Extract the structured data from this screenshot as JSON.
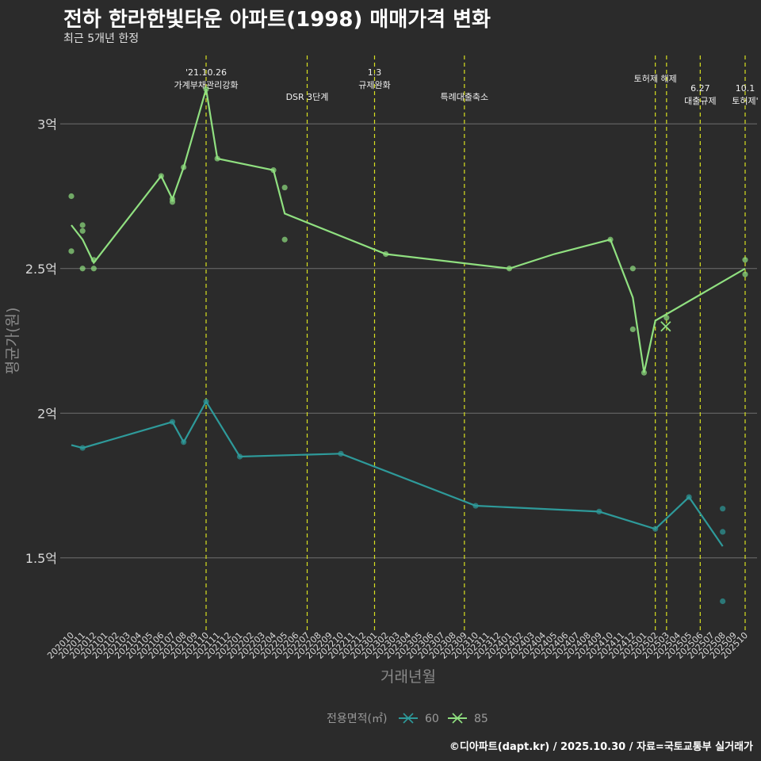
{
  "chart_data": {
    "type": "line",
    "title": "전하 한라한빛타운 아파트(1998) 매매가격 변화",
    "subtitle": "최근 5개년 한정",
    "xlabel": "거래년월",
    "ylabel": "평균가(원)",
    "caption": "©디아파트(dapt.kr) / 2025.10.30 / 자료=국토교통부 실거래가",
    "legend_title": "전용면적(㎡)",
    "ylim": [
      1.25,
      3.25
    ],
    "y_ticks": [
      {
        "value": 1.5,
        "label": "1.5억"
      },
      {
        "value": 2.0,
        "label": "2억"
      },
      {
        "value": 2.5,
        "label": "2.5억"
      },
      {
        "value": 3.0,
        "label": "3억"
      }
    ],
    "months": [
      "202010",
      "202011",
      "202012",
      "202101",
      "202102",
      "202103",
      "202104",
      "202105",
      "202106",
      "202107",
      "202108",
      "202109",
      "202110",
      "202111",
      "202112",
      "202201",
      "202202",
      "202203",
      "202204",
      "202205",
      "202206",
      "202207",
      "202208",
      "202209",
      "202210",
      "202211",
      "202212",
      "202301",
      "202302",
      "202303",
      "202304",
      "202305",
      "202306",
      "202307",
      "202308",
      "202309",
      "202310",
      "202311",
      "202312",
      "202401",
      "202402",
      "202403",
      "202404",
      "202405",
      "202406",
      "202407",
      "202408",
      "202409",
      "202410",
      "202411",
      "202412",
      "202501",
      "202502",
      "202503",
      "202504",
      "202505",
      "202506",
      "202507",
      "202508",
      "202509",
      "202510"
    ],
    "events": [
      {
        "month_index": 12,
        "lines": [
          "'21.10.26",
          "가계부채관리강화"
        ],
        "row": 0
      },
      {
        "month_index": 21,
        "lines": [
          "DSR 3단계"
        ],
        "row": 2
      },
      {
        "month_index": 27,
        "lines": [
          "1.3",
          "규제완화"
        ],
        "row": 0
      },
      {
        "month_index": 35,
        "lines": [
          "특례대출축소"
        ],
        "row": 2
      },
      {
        "month_index": 52,
        "lines": [
          "토허제 해제"
        ],
        "row": 1
      },
      {
        "month_index": 53,
        "lines": [
          ""
        ],
        "row": 1
      },
      {
        "month_index": 56,
        "lines": [
          "6.27",
          "대출규제"
        ],
        "row": 2
      },
      {
        "month_index": 60,
        "lines": [
          "10.1",
          "토허제'"
        ],
        "row": 2
      }
    ],
    "series": [
      {
        "name": "60",
        "color": "#2e9a9a",
        "line": [
          [
            0,
            1.89
          ],
          [
            1,
            1.88
          ],
          [
            9,
            1.97
          ],
          [
            10,
            1.9
          ],
          [
            12,
            2.04
          ],
          [
            15,
            1.85
          ],
          [
            24,
            1.86
          ],
          [
            36,
            1.68
          ],
          [
            47,
            1.66
          ],
          [
            52,
            1.6
          ],
          [
            55,
            1.71
          ],
          [
            58,
            1.54
          ]
        ],
        "points": [
          [
            1,
            1.88
          ],
          [
            9,
            1.97
          ],
          [
            10,
            1.9
          ],
          [
            12,
            2.04
          ],
          [
            15,
            1.85
          ],
          [
            24,
            1.86
          ],
          [
            36,
            1.68
          ],
          [
            47,
            1.66
          ],
          [
            52,
            1.6
          ],
          [
            55,
            1.71
          ],
          [
            58,
            1.67
          ],
          [
            58,
            1.59
          ],
          [
            58,
            1.35
          ]
        ]
      },
      {
        "name": "85",
        "color": "#90e080",
        "line": [
          [
            0,
            2.65
          ],
          [
            1,
            2.6
          ],
          [
            2,
            2.52
          ],
          [
            8,
            2.82
          ],
          [
            9,
            2.74
          ],
          [
            10,
            2.85
          ],
          [
            12,
            3.12
          ],
          [
            13,
            2.88
          ],
          [
            18,
            2.84
          ],
          [
            19,
            2.69
          ],
          [
            28,
            2.55
          ],
          [
            39,
            2.5
          ],
          [
            43,
            2.55
          ],
          [
            48,
            2.6
          ],
          [
            50,
            2.4
          ],
          [
            51,
            2.14
          ],
          [
            52,
            2.32
          ],
          [
            60,
            2.5
          ]
        ],
        "points": [
          [
            0,
            2.75
          ],
          [
            0,
            2.56
          ],
          [
            1,
            2.65
          ],
          [
            1,
            2.63
          ],
          [
            1,
            2.5
          ],
          [
            2,
            2.53
          ],
          [
            2,
            2.5
          ],
          [
            8,
            2.82
          ],
          [
            9,
            2.74
          ],
          [
            9,
            2.73
          ],
          [
            10,
            2.85
          ],
          [
            12,
            3.12
          ],
          [
            13,
            2.88
          ],
          [
            18,
            2.84
          ],
          [
            19,
            2.78
          ],
          [
            19,
            2.6
          ],
          [
            28,
            2.55
          ],
          [
            39,
            2.5
          ],
          [
            48,
            2.6
          ],
          [
            50,
            2.5
          ],
          [
            50,
            2.29
          ],
          [
            51,
            2.14
          ],
          [
            53,
            2.33
          ],
          [
            60,
            2.53
          ],
          [
            60,
            2.48
          ]
        ],
        "cross_marker": [
          53,
          2.3
        ]
      }
    ]
  }
}
